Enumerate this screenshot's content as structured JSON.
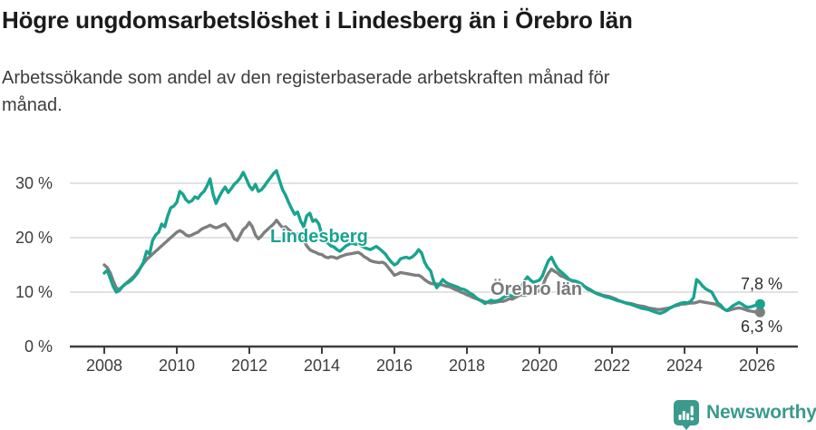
{
  "header": {
    "title": "Högre ungdomsarbetslöshet i Lindesberg än i Örebro län",
    "subtitle_lines": [
      "Arbetssökande som andel av den registerbaserade arbetskraften månad för",
      "månad."
    ]
  },
  "chart_data": {
    "type": "line",
    "unit": "%",
    "x_start_year": 2008,
    "points_per_year": 12,
    "x_ticks": [
      {
        "year": 2008,
        "label": "2008"
      },
      {
        "year": 2010,
        "label": "2010"
      },
      {
        "year": 2012,
        "label": "2012"
      },
      {
        "year": 2014,
        "label": "2014"
      },
      {
        "year": 2016,
        "label": "2016"
      },
      {
        "year": 2018,
        "label": "2018"
      },
      {
        "year": 2020,
        "label": "2020"
      },
      {
        "year": 2022,
        "label": "2022"
      },
      {
        "year": 2024,
        "label": "2024"
      },
      {
        "year": 2026,
        "label": "2026"
      }
    ],
    "y_ticks": [
      {
        "value": 0,
        "label": "0 %"
      },
      {
        "value": 10,
        "label": "10 %"
      },
      {
        "value": 20,
        "label": "20 %"
      },
      {
        "value": 30,
        "label": "30 %"
      }
    ],
    "ylim": [
      0,
      33
    ],
    "grid_color": "#d9d9d9",
    "axis_color": "#3f3f3f",
    "series": [
      {
        "name": "Lindesberg",
        "color": "#18a38f",
        "end_label": "7,8 %",
        "end_value": 7.8,
        "values": [
          13.5,
          14.0,
          12.5,
          11.0,
          10.0,
          10.3,
          11.0,
          11.5,
          11.8,
          12.2,
          12.8,
          13.5,
          14.5,
          15.5,
          17.5,
          17.0,
          19.5,
          20.5,
          21.0,
          22.5,
          22.0,
          24.0,
          25.5,
          25.8,
          26.5,
          28.5,
          28.0,
          27.0,
          26.5,
          26.8,
          27.5,
          27.2,
          28.0,
          28.5,
          29.5,
          30.8,
          28.0,
          26.3,
          27.5,
          28.5,
          29.3,
          28.3,
          29.0,
          29.8,
          30.3,
          31.0,
          32.0,
          30.8,
          29.5,
          28.8,
          29.8,
          28.5,
          28.8,
          29.5,
          30.3,
          31.0,
          31.8,
          32.3,
          30.5,
          28.8,
          27.8,
          26.5,
          25.3,
          24.3,
          24.7,
          23.0,
          22.0,
          24.0,
          24.5,
          23.0,
          23.3,
          22.5,
          20.5,
          19.4,
          19.0,
          18.5,
          18.3,
          17.8,
          17.5,
          18.0,
          18.5,
          18.8,
          19.0,
          18.8,
          18.8,
          18.5,
          18.2,
          18.0,
          17.8,
          18.1,
          18.4,
          18.0,
          17.5,
          17.0,
          16.2,
          15.5,
          15.0,
          15.3,
          16.1,
          16.3,
          16.4,
          16.2,
          16.5,
          17.0,
          17.8,
          17.2,
          15.5,
          14.5,
          13.9,
          12.0,
          10.8,
          11.5,
          12.3,
          11.8,
          11.5,
          11.3,
          11.1,
          10.9,
          10.6,
          10.5,
          10.2,
          9.8,
          9.5,
          9.0,
          8.6,
          8.3,
          7.9,
          8.2,
          8.5,
          8.3,
          8.4,
          8.6,
          9.0,
          9.3,
          9.5,
          9.2,
          9.6,
          10.2,
          11.0,
          12.0,
          12.8,
          12.2,
          11.8,
          12.0,
          12.2,
          13.0,
          14.5,
          15.8,
          16.4,
          15.2,
          14.3,
          13.8,
          13.3,
          12.8,
          12.3,
          12.1,
          12.0,
          11.8,
          11.5,
          11.0,
          10.5,
          10.3,
          10.0,
          9.7,
          9.5,
          9.3,
          9.1,
          9.0,
          8.8,
          8.6,
          8.4,
          8.3,
          8.1,
          7.9,
          7.8,
          7.6,
          7.4,
          7.2,
          7.0,
          6.9,
          6.8,
          6.6,
          6.4,
          6.2,
          6.1,
          6.3,
          6.6,
          7.0,
          7.3,
          7.6,
          7.8,
          8.0,
          8.1,
          8.0,
          8.3,
          9.0,
          12.3,
          11.8,
          11.1,
          10.6,
          10.3,
          10.0,
          9.0,
          8.0,
          7.6,
          6.9,
          6.6,
          7.0,
          7.5,
          7.8,
          8.1,
          7.8,
          7.4,
          7.2,
          7.3,
          7.5,
          7.6,
          7.8
        ]
      },
      {
        "name": "Örebro län",
        "color": "#7e7e7e",
        "end_label": "6,3 %",
        "end_value": 6.3,
        "values": [
          15.0,
          14.5,
          13.5,
          12.0,
          10.8,
          10.5,
          11.0,
          11.5,
          12.0,
          12.5,
          13.0,
          13.8,
          14.5,
          15.3,
          16.0,
          16.5,
          17.0,
          17.5,
          18.0,
          18.5,
          19.0,
          19.5,
          20.0,
          20.5,
          21.0,
          21.3,
          21.0,
          20.5,
          20.3,
          20.5,
          20.8,
          21.0,
          21.5,
          21.8,
          22.0,
          22.3,
          22.0,
          21.8,
          22.0,
          22.3,
          22.5,
          21.8,
          21.0,
          19.8,
          19.5,
          20.5,
          21.5,
          22.0,
          22.8,
          22.0,
          20.5,
          19.8,
          20.3,
          21.0,
          21.5,
          22.0,
          22.5,
          23.2,
          22.5,
          21.8,
          22.0,
          21.5,
          21.0,
          20.8,
          20.6,
          20.3,
          19.5,
          18.5,
          17.8,
          17.5,
          17.3,
          17.0,
          16.9,
          16.5,
          16.3,
          16.5,
          16.4,
          16.2,
          16.5,
          16.7,
          16.9,
          17.0,
          17.1,
          17.2,
          17.3,
          17.0,
          16.5,
          16.2,
          15.8,
          15.6,
          15.5,
          15.4,
          15.5,
          15.2,
          14.5,
          13.8,
          13.1,
          13.3,
          13.6,
          13.5,
          13.4,
          13.3,
          13.2,
          13.1,
          13.1,
          12.8,
          12.3,
          11.9,
          11.6,
          11.5,
          11.5,
          11.4,
          11.3,
          11.1,
          11.0,
          10.8,
          10.5,
          10.3,
          10.0,
          9.8,
          9.5,
          9.3,
          9.0,
          8.8,
          8.6,
          8.4,
          8.2,
          8.1,
          8.0,
          8.1,
          8.2,
          8.3,
          8.3,
          8.5,
          8.8,
          8.7,
          9.0,
          9.3,
          9.5,
          9.4,
          9.6,
          9.8,
          9.9,
          10.0,
          10.3,
          11.0,
          12.5,
          13.5,
          14.2,
          13.8,
          13.5,
          13.0,
          12.8,
          12.5,
          12.2,
          12.0,
          12.0,
          11.7,
          11.4,
          11.0,
          10.7,
          10.4,
          10.0,
          9.8,
          9.6,
          9.4,
          9.3,
          9.2,
          9.0,
          8.8,
          8.5,
          8.3,
          8.1,
          8.0,
          7.9,
          7.8,
          7.6,
          7.5,
          7.4,
          7.3,
          7.1,
          7.0,
          6.9,
          6.8,
          6.8,
          6.9,
          7.0,
          7.1,
          7.3,
          7.5,
          7.6,
          7.8,
          7.8,
          7.9,
          8.0,
          8.0,
          8.1,
          8.3,
          8.2,
          8.1,
          8.0,
          7.9,
          7.8,
          7.6,
          7.3,
          6.9,
          6.6,
          6.7,
          6.9,
          7.0,
          7.1,
          7.0,
          6.8,
          6.6,
          6.5,
          6.4,
          6.3,
          6.3
        ]
      }
    ],
    "legend_position": "inline-labels"
  },
  "footer": {
    "brand": "Newsworthy",
    "brand_color": "#3a9a8c",
    "brand_icon": "bar-chart-pin-icon"
  }
}
